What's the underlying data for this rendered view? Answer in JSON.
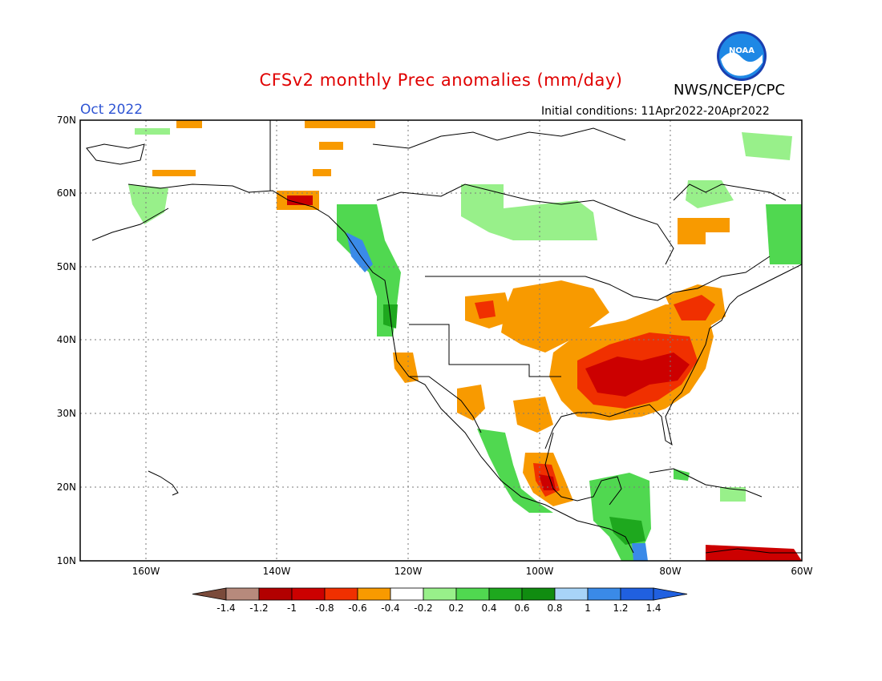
{
  "title": "CFSv2 monthly Prec anomalies (mm/day)",
  "organization": "NWS/NCEP/CPC",
  "logo_text": "NOAA",
  "valid_month": "Oct 2022",
  "initial_conditions": "Initial conditions: 11Apr2022-20Apr2022",
  "lat_labels": [
    "70N",
    "60N",
    "50N",
    "40N",
    "30N",
    "20N",
    "10N"
  ],
  "lon_labels": [
    "160W",
    "140W",
    "120W",
    "100W",
    "80W",
    "60W"
  ],
  "colorbar": {
    "tick_labels": [
      "-1.4",
      "-1.2",
      "-1",
      "-0.8",
      "-0.6",
      "-0.4",
      "-0.2",
      "0.2",
      "0.4",
      "0.6",
      "0.8",
      "1",
      "1.2",
      "1.4"
    ],
    "colors": [
      "#7a4a3a",
      "#b78a7c",
      "#b20000",
      "#cc0000",
      "#f03000",
      "#f89a00",
      "#ffffff",
      "#98f08a",
      "#50d850",
      "#1ea81e",
      "#108c10",
      "#a8d4f8",
      "#3a8ae8",
      "#2060e0"
    ],
    "low_arrow_color": "#7a4a3a",
    "high_arrow_color": "#2060e0"
  }
}
